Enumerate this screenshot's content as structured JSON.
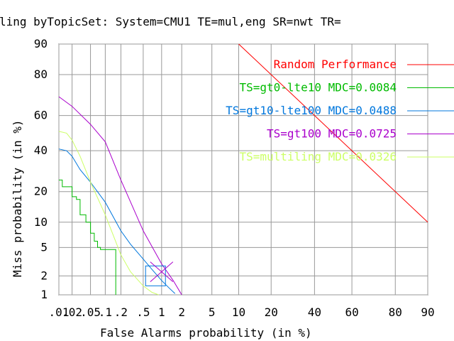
{
  "chart_data": {
    "type": "line",
    "scale": "normal-deviate",
    "title": "ling byTopicSet: System=CMU1 TE=mul,eng SR=nwt TR=",
    "xlabel": "False Alarms probability (in %)",
    "ylabel": "Miss probability (in %)",
    "xlim": [
      0.01,
      90
    ],
    "ylim": [
      1,
      90
    ],
    "x_ticks": [
      {
        "value": 0.01,
        "label": ".01"
      },
      {
        "value": 0.02,
        "label": ".02"
      },
      {
        "value": 0.05,
        "label": ".05"
      },
      {
        "value": 0.1,
        "label": ".1"
      },
      {
        "value": 0.2,
        "label": ".2"
      },
      {
        "value": 0.5,
        "label": ".5"
      },
      {
        "value": 1,
        "label": "1"
      },
      {
        "value": 2,
        "label": "2"
      },
      {
        "value": 5,
        "label": "5"
      },
      {
        "value": 10,
        "label": "10"
      },
      {
        "value": 20,
        "label": "20"
      },
      {
        "value": 40,
        "label": "40"
      },
      {
        "value": 60,
        "label": "60"
      },
      {
        "value": 80,
        "label": "80"
      },
      {
        "value": 90,
        "label": "90"
      }
    ],
    "y_ticks": [
      {
        "value": 1,
        "label": "1"
      },
      {
        "value": 2,
        "label": "2"
      },
      {
        "value": 5,
        "label": "5"
      },
      {
        "value": 10,
        "label": "10"
      },
      {
        "value": 20,
        "label": "20"
      },
      {
        "value": 40,
        "label": "40"
      },
      {
        "value": 60,
        "label": "60"
      },
      {
        "value": 80,
        "label": "80"
      },
      {
        "value": 90,
        "label": "90"
      }
    ],
    "grid": true,
    "legend_position": "top-right",
    "series": [
      {
        "name": "Random Performance",
        "color": "#ff0000",
        "kind": "line",
        "x": [
          10,
          90
        ],
        "y": [
          90,
          10
        ]
      },
      {
        "name": "TS=gt0-lte10 MDC=0.0084",
        "color": "#00bb00",
        "kind": "step",
        "x": [
          0.01,
          0.012,
          0.02,
          0.025,
          0.03,
          0.04,
          0.05,
          0.06,
          0.07,
          0.08,
          0.1,
          0.1,
          0.16,
          0.16
        ],
        "y": [
          25,
          22,
          18,
          17,
          12,
          10,
          7.5,
          6,
          5,
          4.7,
          4.7,
          4.7,
          4.7,
          1
        ]
      },
      {
        "name": "TS=gt10-lte100 MDC=0.0488",
        "color": "#0077dd",
        "kind": "line",
        "x": [
          0.01,
          0.015,
          0.02,
          0.03,
          0.05,
          0.1,
          0.2,
          0.3,
          0.5,
          0.7,
          1,
          1.3,
          1.6
        ],
        "y": [
          41,
          40,
          37,
          30,
          24,
          16,
          8,
          5.5,
          3.5,
          2.5,
          1.7,
          1.3,
          1.05
        ]
      },
      {
        "name": "TS=gt100 MDC=0.0725",
        "color": "#aa00cc",
        "kind": "line",
        "x": [
          0.01,
          0.02,
          0.05,
          0.1,
          0.2,
          0.5,
          1,
          1.5,
          2
        ],
        "y": [
          70,
          65,
          55,
          45,
          25,
          8,
          3,
          1.7,
          1
        ]
      },
      {
        "name": "TS=multiling MDC=0.0326",
        "color": "#ccff66",
        "kind": "line",
        "x": [
          0.01,
          0.015,
          0.02,
          0.03,
          0.05,
          0.1,
          0.2,
          0.3,
          0.5,
          0.7,
          0.9
        ],
        "y": [
          51,
          50,
          46,
          37,
          24,
          12,
          4,
          2.3,
          1.4,
          1.1,
          1
        ]
      }
    ],
    "min_dcf_markers": [
      {
        "series": "TS=gt10-lte100 MDC=0.0488",
        "shape": "box",
        "x": 0.8,
        "y": 2
      }
    ],
    "crosshair": {
      "x": 1,
      "y": 2.3,
      "color": "#aa00cc"
    }
  }
}
